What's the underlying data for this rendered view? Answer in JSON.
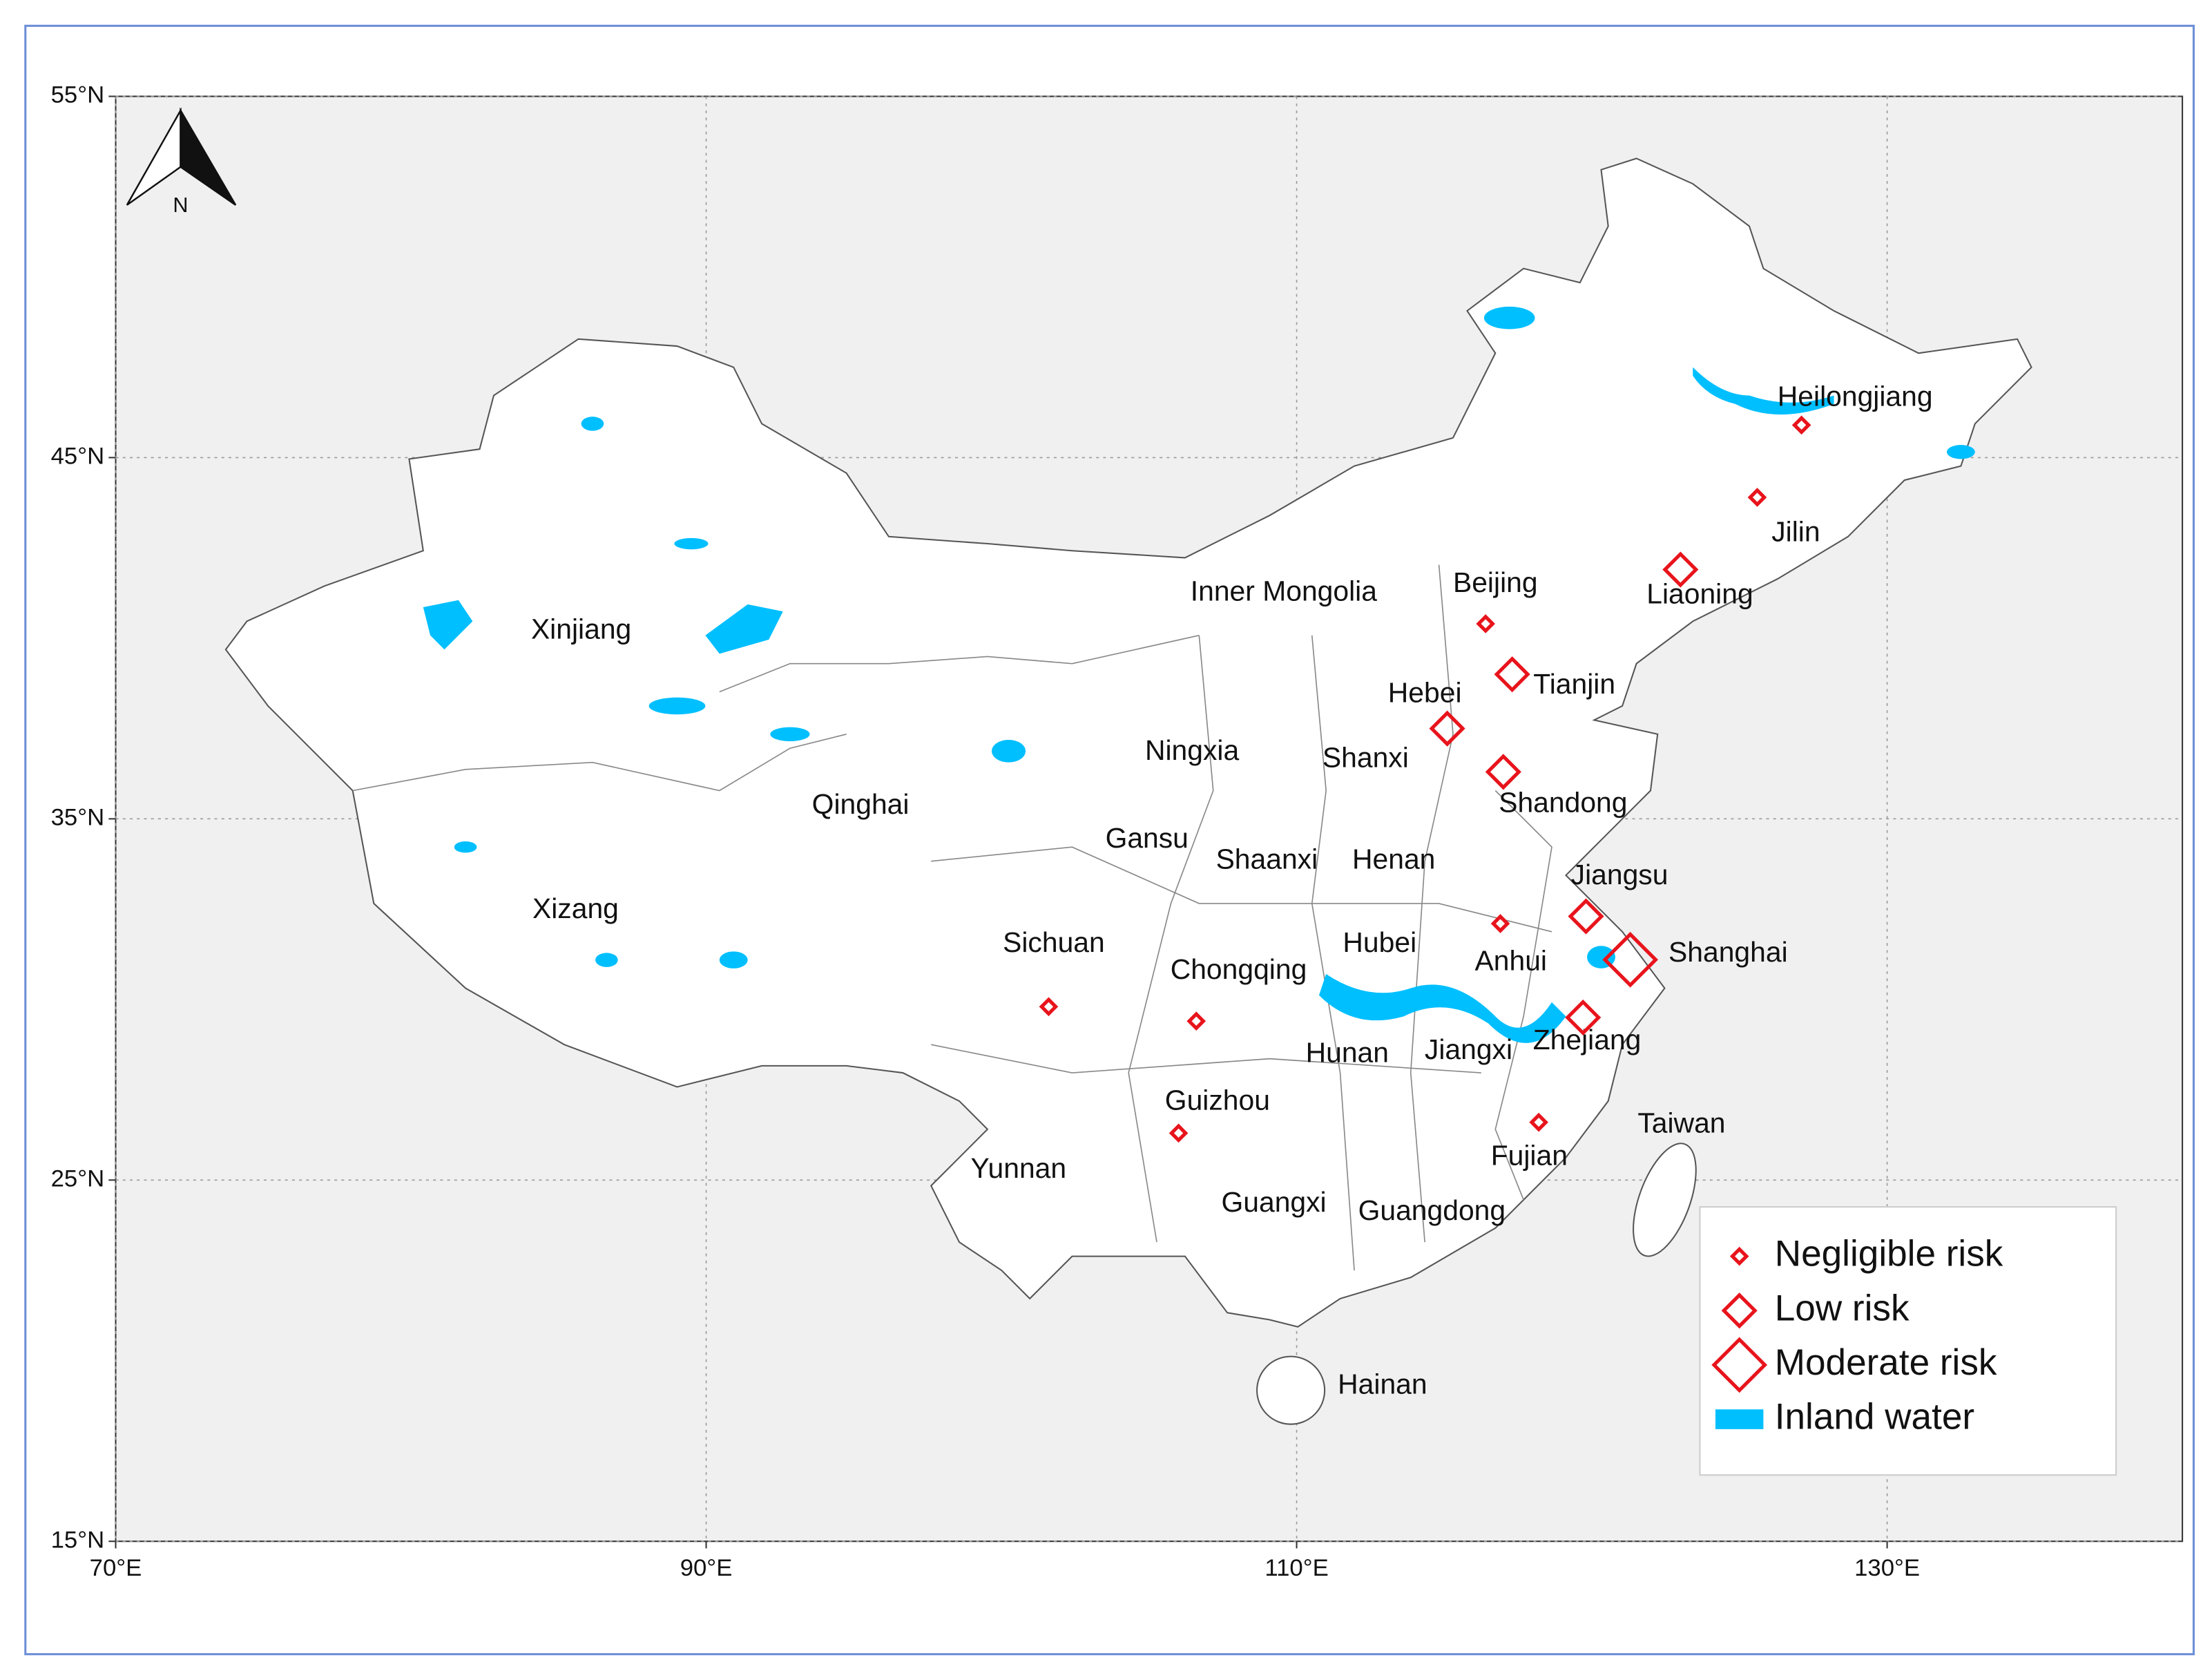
{
  "chart_data": {
    "type": "map",
    "north_label": "N",
    "xlim": [
      70,
      140
    ],
    "ylim": [
      15,
      55
    ],
    "xticks": [
      {
        "value": 70,
        "label": "70°E"
      },
      {
        "value": 90,
        "label": "90°E"
      },
      {
        "value": 110,
        "label": "110°E"
      },
      {
        "value": 130,
        "label": "130°E"
      }
    ],
    "yticks": [
      {
        "value": 15,
        "label": "15°N"
      },
      {
        "value": 25,
        "label": "25°N"
      },
      {
        "value": 35,
        "label": "35°N"
      },
      {
        "value": 45,
        "label": "45°N"
      },
      {
        "value": 55,
        "label": "55°N"
      }
    ],
    "grid": true,
    "regions": [
      "Heilongjiang",
      "Jilin",
      "Liaoning",
      "Beijing",
      "Inner Mongolia",
      "Tianjin",
      "Hebei",
      "Xinjiang",
      "Ningxia",
      "Shanxi",
      "Shandong",
      "Qinghai",
      "Gansu",
      "Shaanxi",
      "Henan",
      "Jiangsu",
      "Xizang",
      "Sichuan",
      "Chongqing",
      "Hubei",
      "Anhui",
      "Shanghai",
      "Hunan",
      "Jiangxi",
      "Zhejiang",
      "Guizhou",
      "Taiwan",
      "Yunnan",
      "Fujian",
      "Guangxi",
      "Guangdong",
      "Hainan"
    ],
    "legend": "bottom right",
    "series": [
      {
        "name": "Negligible risk",
        "color": "#e8141c",
        "x": [
          127.1,
          125.6,
          116.4,
          116.9,
          101.6,
          106.6,
          106.0,
          118.2
        ],
        "y": [
          45.9,
          43.9,
          40.4,
          32.1,
          29.8,
          29.4,
          26.3,
          26.6
        ]
      },
      {
        "name": "Low risk",
        "color": "#e8141c",
        "x": [
          123.0,
          117.3,
          115.1,
          117.0,
          119.8,
          119.7
        ],
        "y": [
          41.9,
          39.0,
          37.5,
          36.3,
          32.3,
          29.5
        ]
      },
      {
        "name": "Moderate risk",
        "color": "#e8141c",
        "x": [
          121.3
        ],
        "y": [
          31.1
        ]
      },
      {
        "name": "Inland water",
        "color": "#00bfff"
      }
    ]
  }
}
